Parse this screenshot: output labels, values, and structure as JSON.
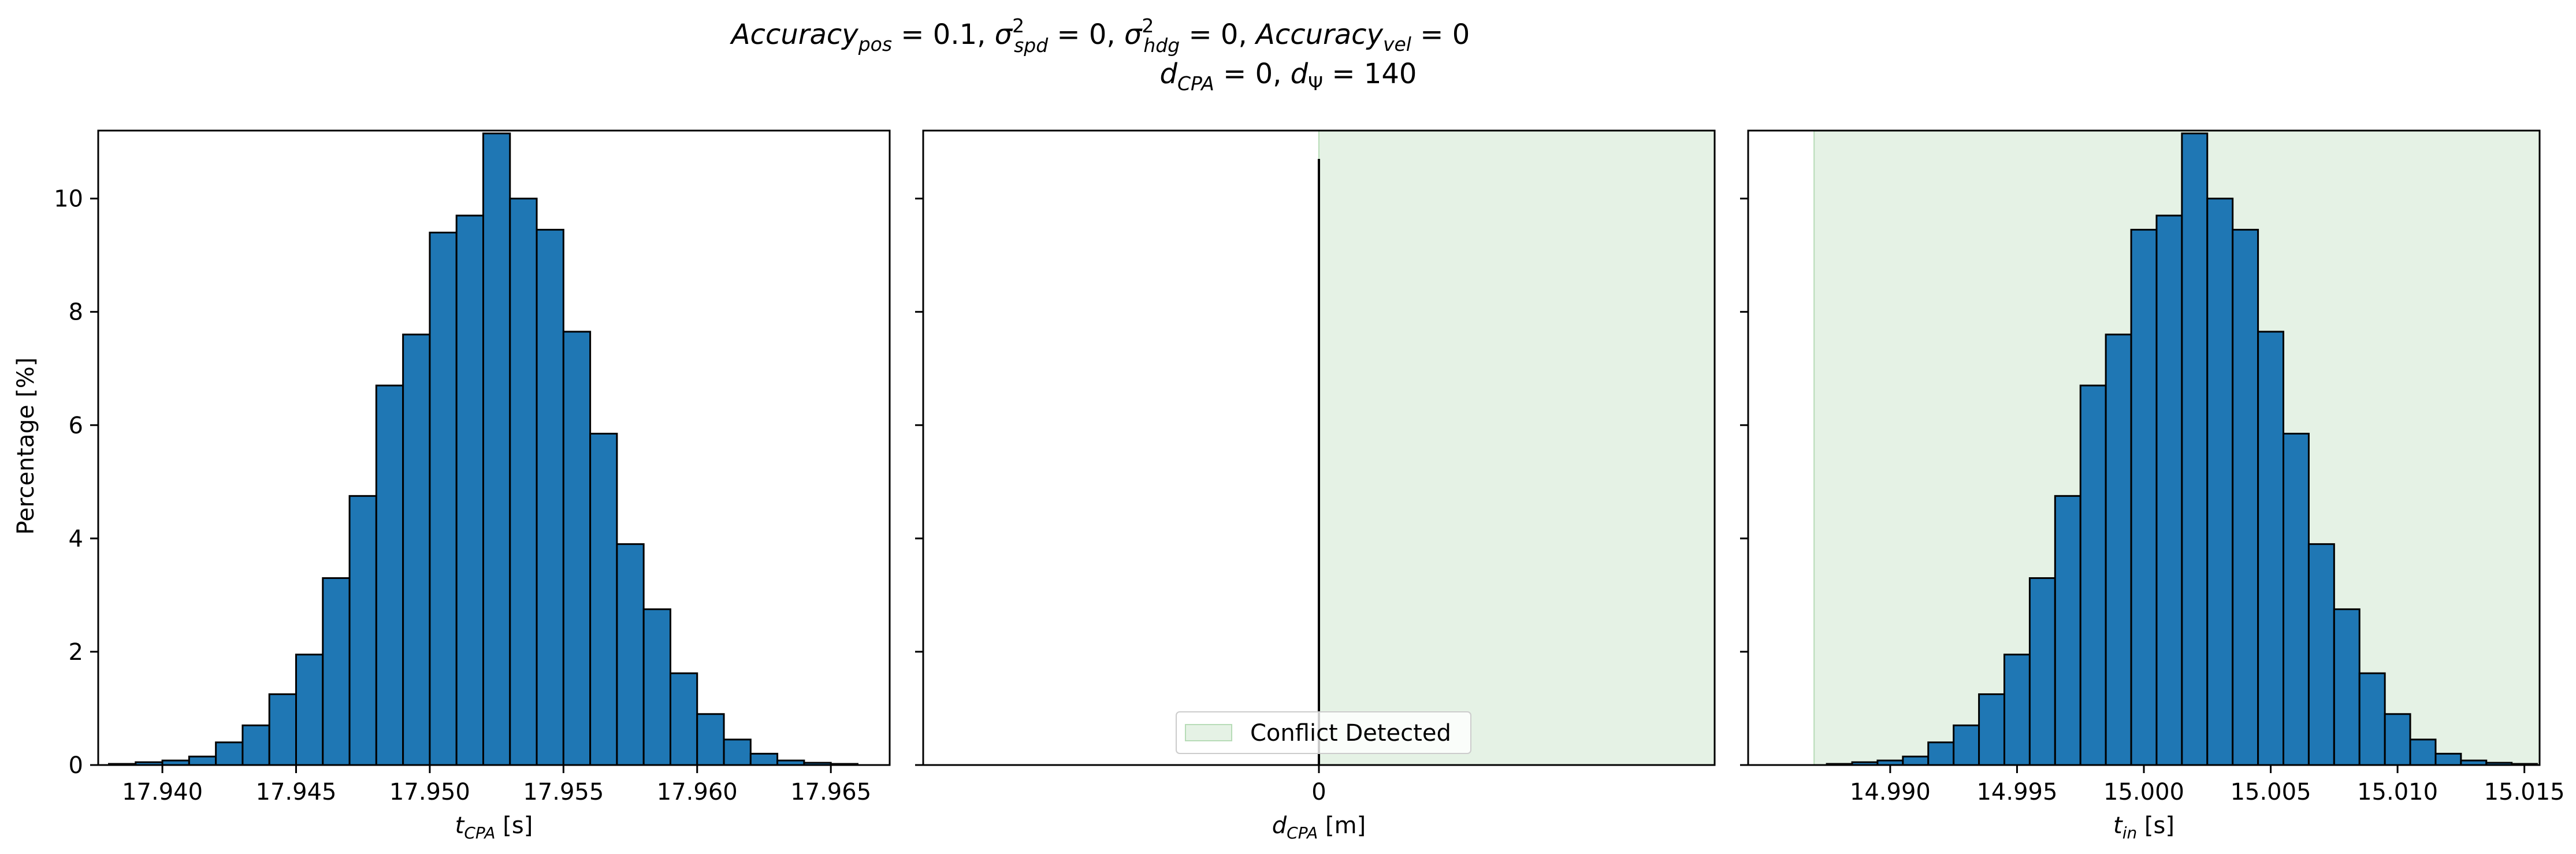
{
  "figure": {
    "title_line1": {
      "a_base": "Accuracy",
      "a_sub": "pos",
      "a_rest": " = 0.1, ",
      "s1_sym": "σ",
      "s1_sup": "2",
      "s1_sub": "spd",
      "s1_rest": " = 0, ",
      "s2_sym": "σ",
      "s2_sup": "2",
      "s2_sub": "hdg",
      "s2_rest": " = 0, ",
      "b_base": "Accuracy",
      "b_sub": "vel",
      "b_rest": " = 0"
    },
    "title_line2": {
      "d1_base": "d",
      "d1_sub": "CPA",
      "d1_rest": " = 0, ",
      "d2_base": "d",
      "d2_sub": "Ψ",
      "d2_rest": " = 140"
    }
  },
  "colors": {
    "bar_fill": "#1f77b4",
    "bar_edge": "#000000",
    "conflict_fill": "#e5f2e5",
    "conflict_edge": "#b7dcb7"
  },
  "chart_data": [
    {
      "type": "bar",
      "name": "t_cpa_histogram",
      "xlabel_base": "t",
      "xlabel_sub": "CPA",
      "xlabel_unit": " [s]",
      "ylabel": "Percentage [%]",
      "xlim": [
        17.9376,
        17.9672
      ],
      "ylim": [
        0,
        11.2
      ],
      "xticks": [
        "17.940",
        "17.945",
        "17.950",
        "17.955",
        "17.960",
        "17.965"
      ],
      "yticks": [
        "0",
        "2",
        "4",
        "6",
        "8",
        "10"
      ],
      "bin_start": 17.938,
      "bin_width": 0.001,
      "values": [
        0.02,
        0.05,
        0.08,
        0.15,
        0.4,
        0.7,
        1.25,
        1.95,
        3.3,
        4.75,
        6.7,
        7.6,
        9.4,
        9.7,
        11.15,
        10.0,
        9.45,
        7.65,
        5.85,
        3.9,
        2.75,
        1.62,
        0.9,
        0.45,
        0.2,
        0.08,
        0.04,
        0.02
      ]
    },
    {
      "type": "bar",
      "name": "d_cpa_histogram",
      "xlabel_base": "d",
      "xlabel_sub": "CPA",
      "xlabel_unit": " [m]",
      "xlim": [
        -2.5,
        2.5
      ],
      "ylim": [
        0,
        11.2
      ],
      "xticks": [
        "0",
        "10",
        "20",
        "30",
        "40",
        "50"
      ],
      "legend": {
        "label": "Conflict Detected",
        "placement": "lower center"
      },
      "conflict_region": [
        0,
        50
      ],
      "spike_x": 0,
      "spike_value": 10.7
    },
    {
      "type": "bar",
      "name": "t_in_histogram",
      "xlabel_base": "t",
      "xlabel_sub": "in",
      "xlabel_unit": " [s]",
      "xlim": [
        14.9844,
        15.0156
      ],
      "ylim": [
        0,
        11.2
      ],
      "xticks": [
        "14.990",
        "14.995",
        "15.000",
        "15.005",
        "15.010",
        "15.015"
      ],
      "conflict_region": [
        14.987,
        15.0156
      ],
      "bin_start": 14.9875,
      "bin_width": 0.001,
      "values": [
        0.02,
        0.05,
        0.08,
        0.15,
        0.4,
        0.7,
        1.25,
        1.95,
        3.3,
        4.75,
        6.7,
        7.6,
        9.45,
        9.7,
        11.15,
        10.0,
        9.45,
        7.65,
        5.85,
        3.9,
        2.75,
        1.62,
        0.9,
        0.45,
        0.2,
        0.08,
        0.04,
        0.02
      ]
    }
  ]
}
